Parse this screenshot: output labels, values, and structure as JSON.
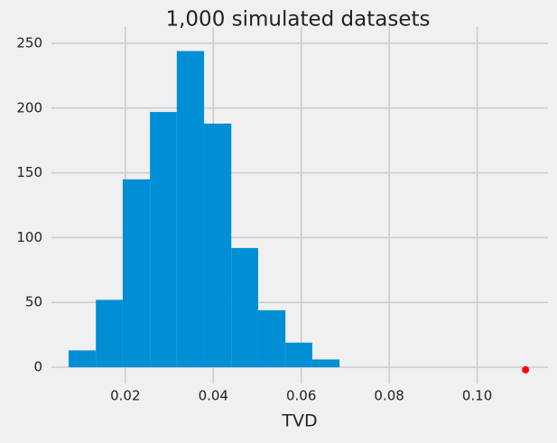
{
  "chart_data": {
    "type": "histogram",
    "title": "1,000 simulated datasets",
    "x_label": "TVD",
    "bins": [
      0.0071,
      0.0133,
      0.0194,
      0.0256,
      0.0317,
      0.0379,
      0.0441,
      0.0502,
      0.0564,
      0.0625,
      0.0687
    ],
    "values": [
      13,
      52,
      145,
      197,
      244,
      188,
      92,
      44,
      19,
      6
    ],
    "color": "#008fd5",
    "points": {
      "x": [
        0.111
      ],
      "y": [
        -2
      ],
      "color": "#ff0000"
    },
    "xlim": [
      0.0032,
      0.1161
    ],
    "ylim": [
      -12.5,
      262.5
    ],
    "xticks": [
      0.02,
      0.04,
      0.06,
      0.08,
      {
        "value": 0.1,
        "label": "0.10"
      }
    ],
    "yticks": [
      0,
      50,
      100,
      150,
      200,
      250
    ],
    "grid": true
  }
}
